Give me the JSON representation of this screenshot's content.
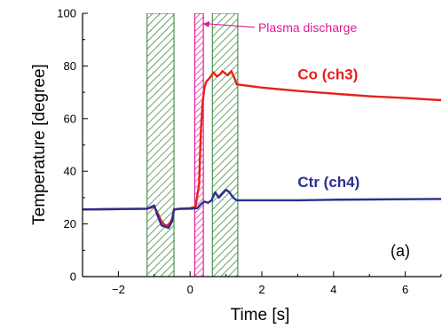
{
  "chart_data": {
    "type": "line",
    "title": "",
    "xlabel": "Time [s]",
    "ylabel": "Temperature [degree]",
    "xlim": [
      -3,
      7
    ],
    "ylim": [
      0,
      100
    ],
    "x_ticks": [
      -2,
      0,
      2,
      4,
      6
    ],
    "y_ticks": [
      0,
      20,
      40,
      60,
      80,
      100
    ],
    "grid": false,
    "panel_label": "(a)",
    "colors": {
      "co": "#e8201a",
      "ctr": "#2a2f8f",
      "hatch": "#2e7d32",
      "plasma": "#e0199a"
    },
    "shaded_regions": [
      {
        "x0": -1.2,
        "x1": -0.45,
        "style": "green-hatch"
      },
      {
        "x0": 0.62,
        "x1": 1.33,
        "style": "green-hatch"
      }
    ],
    "plasma_region": {
      "x0": 0.13,
      "x1": 0.37
    },
    "annotation": {
      "text": "Plasma discharge",
      "arrow_to": [
        0.35,
        96
      ],
      "text_at": [
        1.9,
        93
      ]
    },
    "series": [
      {
        "name": "Co (ch3)",
        "color_key": "co",
        "label_at": [
          3.0,
          75
        ],
        "x": [
          -3,
          -1.2,
          -1.0,
          -0.9,
          -0.8,
          -0.7,
          -0.6,
          -0.5,
          -0.45,
          -0.3,
          0.0,
          0.15,
          0.25,
          0.3,
          0.35,
          0.4,
          0.45,
          0.55,
          0.65,
          0.75,
          0.85,
          0.9,
          0.95,
          1.05,
          1.15,
          1.25,
          1.3,
          2,
          3,
          4,
          5,
          6,
          7
        ],
        "y": [
          25.5,
          25.8,
          26.5,
          24.0,
          21.0,
          19.5,
          19.5,
          22.0,
          25.5,
          25.8,
          26.0,
          26.5,
          35,
          55,
          66,
          72,
          74,
          75.5,
          77.5,
          76.0,
          77.0,
          78.0,
          77.5,
          76.5,
          78.0,
          75.0,
          73.0,
          71.8,
          70.5,
          69.5,
          68.5,
          67.8,
          67.0
        ]
      },
      {
        "name": "Ctr (ch4)",
        "color_key": "ctr",
        "label_at": [
          3.0,
          34
        ],
        "x": [
          -3,
          -1.2,
          -1.0,
          -0.9,
          -0.8,
          -0.7,
          -0.6,
          -0.5,
          -0.45,
          -0.3,
          0.0,
          0.2,
          0.3,
          0.4,
          0.5,
          0.6,
          0.7,
          0.8,
          0.9,
          1.0,
          1.1,
          1.2,
          1.3,
          2,
          3,
          4,
          5,
          6,
          7
        ],
        "y": [
          25.5,
          25.8,
          27.0,
          23.0,
          19.5,
          19.0,
          18.5,
          21.0,
          25.5,
          25.7,
          25.8,
          26.0,
          27.5,
          28.5,
          28.0,
          29.0,
          32.0,
          30.0,
          31.5,
          33.0,
          32.0,
          30.0,
          29.0,
          29.0,
          29.0,
          29.2,
          29.3,
          29.4,
          29.5
        ]
      }
    ]
  }
}
